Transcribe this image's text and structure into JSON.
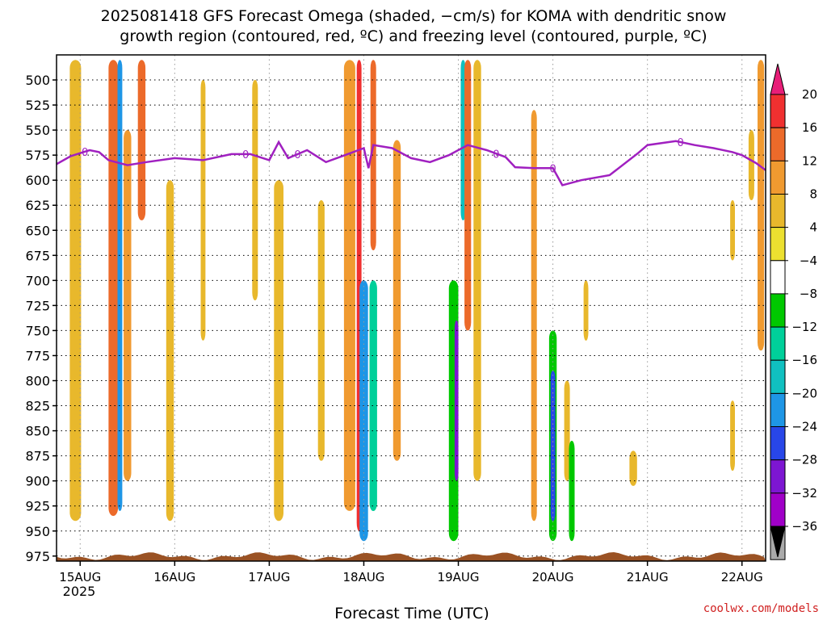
{
  "titles": {
    "line1": "2025081418 GFS Forecast Omega (shaded, −cm/s) for KOMA with dendritic snow",
    "line2": "growth region (contoured, red, ºC) and freezing level (contoured, purple, ºC)"
  },
  "credit": "coolwx.com/models",
  "chart_data": {
    "type": "heatmap",
    "xlabel": "Forecast Time (UTC)",
    "ylabel": "",
    "x_ticks": [
      "15AUG",
      "16AUG",
      "17AUG",
      "18AUG",
      "19AUG",
      "20AUG",
      "21AUG",
      "22AUG"
    ],
    "x_year_label": "2025",
    "x_range_days": [
      -0.25,
      7.25
    ],
    "y_ticks": [
      500,
      525,
      550,
      575,
      600,
      625,
      650,
      675,
      700,
      725,
      750,
      775,
      800,
      825,
      850,
      875,
      900,
      925,
      950,
      975
    ],
    "y_range_hpa": [
      475,
      980
    ],
    "y_scale": "inverted pressure",
    "grid": true,
    "colorbar": {
      "tick_labels": [
        "20",
        "16",
        "12",
        "8",
        "4",
        "−4",
        "−8",
        "−12",
        "−16",
        "−20",
        "−24",
        "−28",
        "−32",
        "−36"
      ],
      "colors": [
        "#e81e78",
        "#f03030",
        "#ec6a2a",
        "#f09a30",
        "#e8b82c",
        "#ece030",
        "#ffffff",
        "#00c800",
        "#00d09a",
        "#10c0c0",
        "#1e96e6",
        "#2846e8",
        "#7d16d2",
        "#a000c8",
        "#aaaaaa",
        "#000000"
      ]
    },
    "freezing_level_label": "0",
    "freezing_level": {
      "days": [
        -0.25,
        -0.1,
        0.0,
        0.1,
        0.2,
        0.3,
        0.5,
        0.7,
        1.0,
        1.3,
        1.6,
        1.8,
        2.0,
        2.1,
        2.2,
        2.4,
        2.6,
        2.8,
        3.0,
        3.05,
        3.1,
        3.3,
        3.5,
        3.7,
        3.9,
        4.1,
        4.3,
        4.5,
        4.6,
        4.8,
        5.0,
        5.1,
        5.3,
        5.6,
        5.9,
        6.0,
        6.3,
        6.5,
        6.7,
        6.9,
        7.0,
        7.15,
        7.25
      ],
      "hpa": [
        584,
        576,
        573,
        570,
        572,
        580,
        585,
        582,
        578,
        580,
        574,
        574,
        580,
        562,
        578,
        570,
        582,
        575,
        568,
        588,
        565,
        568,
        578,
        582,
        575,
        565,
        570,
        577,
        587,
        588,
        588,
        605,
        600,
        595,
        573,
        565,
        561,
        565,
        568,
        572,
        575,
        583,
        590
      ]
    },
    "omega_cells": [
      {
        "day": -0.2,
        "p_top": 550,
        "p_bot": 920,
        "w": 0.08,
        "v": -8
      },
      {
        "day": -0.05,
        "p_top": 480,
        "p_bot": 940,
        "w": 0.12,
        "v": 6
      },
      {
        "day": 0.15,
        "p_top": 480,
        "p_bot": 760,
        "w": 0.1,
        "v": -8
      },
      {
        "day": 0.35,
        "p_top": 480,
        "p_bot": 935,
        "w": 0.1,
        "v": 14
      },
      {
        "day": 0.42,
        "p_top": 480,
        "p_bot": 930,
        "w": 0.05,
        "v": -22
      },
      {
        "day": 0.5,
        "p_top": 550,
        "p_bot": 900,
        "w": 0.08,
        "v": 10
      },
      {
        "day": 0.65,
        "p_top": 480,
        "p_bot": 640,
        "w": 0.08,
        "v": 12
      },
      {
        "day": 0.75,
        "p_top": 480,
        "p_bot": 920,
        "w": 0.1,
        "v": -8
      },
      {
        "day": 0.95,
        "p_top": 600,
        "p_bot": 940,
        "w": 0.08,
        "v": 6
      },
      {
        "day": 1.3,
        "p_top": 500,
        "p_bot": 760,
        "w": 0.05,
        "v": 6
      },
      {
        "day": 1.55,
        "p_top": 600,
        "p_bot": 900,
        "w": 0.12,
        "v": -8
      },
      {
        "day": 1.85,
        "p_top": 500,
        "p_bot": 720,
        "w": 0.06,
        "v": 6
      },
      {
        "day": 2.1,
        "p_top": 600,
        "p_bot": 940,
        "w": 0.1,
        "v": 6
      },
      {
        "day": 2.2,
        "p_top": 600,
        "p_bot": 900,
        "w": 0.08,
        "v": -8
      },
      {
        "day": 2.55,
        "p_top": 620,
        "p_bot": 880,
        "w": 0.07,
        "v": 6
      },
      {
        "day": 2.85,
        "p_top": 480,
        "p_bot": 930,
        "w": 0.12,
        "v": 10
      },
      {
        "day": 2.95,
        "p_top": 480,
        "p_bot": 950,
        "w": 0.05,
        "v": 18
      },
      {
        "day": 3.0,
        "p_top": 700,
        "p_bot": 960,
        "w": 0.09,
        "v": -22
      },
      {
        "day": 3.1,
        "p_top": 700,
        "p_bot": 930,
        "w": 0.08,
        "v": -14
      },
      {
        "day": 3.1,
        "p_top": 480,
        "p_bot": 670,
        "w": 0.06,
        "v": 14
      },
      {
        "day": 3.2,
        "p_top": 480,
        "p_bot": 900,
        "w": 0.07,
        "v": -8
      },
      {
        "day": 3.35,
        "p_top": 560,
        "p_bot": 880,
        "w": 0.08,
        "v": 10
      },
      {
        "day": 3.5,
        "p_top": 480,
        "p_bot": 640,
        "w": 0.05,
        "v": -8
      },
      {
        "day": 3.9,
        "p_top": 550,
        "p_bot": 850,
        "w": 0.06,
        "v": -8
      },
      {
        "day": 3.95,
        "p_top": 700,
        "p_bot": 960,
        "w": 0.1,
        "v": -12
      },
      {
        "day": 3.98,
        "p_top": 740,
        "p_bot": 900,
        "w": 0.04,
        "v": -30
      },
      {
        "day": 4.05,
        "p_top": 480,
        "p_bot": 640,
        "w": 0.05,
        "v": -20
      },
      {
        "day": 4.1,
        "p_top": 480,
        "p_bot": 750,
        "w": 0.07,
        "v": 12
      },
      {
        "day": 4.2,
        "p_top": 480,
        "p_bot": 900,
        "w": 0.08,
        "v": 6
      },
      {
        "day": 4.3,
        "p_top": 480,
        "p_bot": 680,
        "w": 0.05,
        "v": -8
      },
      {
        "day": 4.8,
        "p_top": 530,
        "p_bot": 940,
        "w": 0.06,
        "v": 8
      },
      {
        "day": 5.0,
        "p_top": 750,
        "p_bot": 960,
        "w": 0.08,
        "v": -10
      },
      {
        "day": 5.0,
        "p_top": 790,
        "p_bot": 940,
        "w": 0.05,
        "v": -26
      },
      {
        "day": 5.15,
        "p_top": 650,
        "p_bot": 810,
        "w": 0.06,
        "v": -8
      },
      {
        "day": 5.15,
        "p_top": 800,
        "p_bot": 900,
        "w": 0.06,
        "v": 6
      },
      {
        "day": 5.2,
        "p_top": 860,
        "p_bot": 960,
        "w": 0.06,
        "v": -12
      },
      {
        "day": 5.35,
        "p_top": 700,
        "p_bot": 760,
        "w": 0.05,
        "v": 6
      },
      {
        "day": 5.85,
        "p_top": 870,
        "p_bot": 905,
        "w": 0.08,
        "v": 6
      },
      {
        "day": 6.9,
        "p_top": 620,
        "p_bot": 680,
        "w": 0.05,
        "v": 6
      },
      {
        "day": 6.9,
        "p_top": 820,
        "p_bot": 890,
        "w": 0.05,
        "v": 6
      },
      {
        "day": 7.1,
        "p_top": 550,
        "p_bot": 620,
        "w": 0.06,
        "v": 6
      },
      {
        "day": 7.2,
        "p_top": 480,
        "p_bot": 770,
        "w": 0.07,
        "v": 8
      }
    ]
  }
}
